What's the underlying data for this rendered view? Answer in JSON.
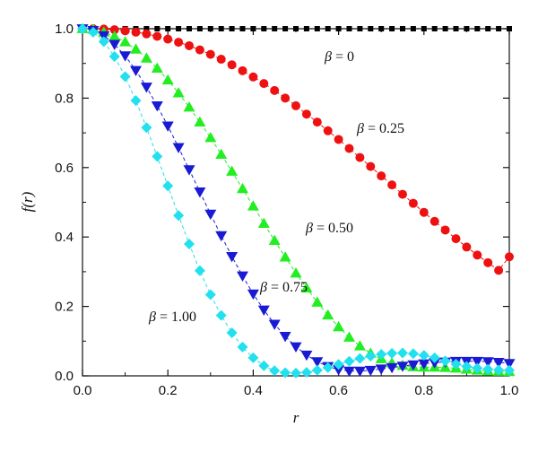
{
  "chart_data": {
    "type": "scatter",
    "xlabel": "r",
    "ylabel": "f(r)",
    "xlim": [
      0,
      1
    ],
    "ylim": [
      0,
      1
    ],
    "xticks": [
      "0.0",
      "0.2",
      "0.4",
      "0.6",
      "0.8",
      "1.0"
    ],
    "yticks": [
      "0.0",
      "0.2",
      "0.4",
      "0.6",
      "0.8",
      "1.0"
    ],
    "grid": false,
    "x": [
      0.0,
      0.025,
      0.05,
      0.075,
      0.1,
      0.125,
      0.15,
      0.175,
      0.2,
      0.225,
      0.25,
      0.275,
      0.3,
      0.325,
      0.35,
      0.375,
      0.4,
      0.425,
      0.45,
      0.475,
      0.5,
      0.525,
      0.55,
      0.575,
      0.6,
      0.625,
      0.65,
      0.675,
      0.7,
      0.725,
      0.75,
      0.775,
      0.8,
      0.825,
      0.85,
      0.875,
      0.9,
      0.925,
      0.95,
      0.975,
      1.0
    ],
    "series": [
      {
        "beta": "0",
        "annotation": "β = 0",
        "color": "#000000",
        "marker": "square",
        "values": [
          1,
          1,
          1,
          1,
          1,
          1,
          1,
          1,
          1,
          1,
          1,
          1,
          1,
          1,
          1,
          1,
          1,
          1,
          1,
          1,
          1,
          1,
          1,
          1,
          1,
          1,
          1,
          1,
          1,
          1,
          1,
          1,
          1,
          1,
          1,
          1,
          1,
          1,
          1,
          1,
          1
        ]
      },
      {
        "beta": "0.25",
        "annotation": "β = 0.25",
        "color": "#ee1111",
        "marker": "circle",
        "values": [
          1.0,
          1.0,
          0.999,
          0.997,
          0.994,
          0.99,
          0.985,
          0.978,
          0.97,
          0.961,
          0.951,
          0.939,
          0.926,
          0.912,
          0.896,
          0.879,
          0.861,
          0.842,
          0.822,
          0.8,
          0.778,
          0.754,
          0.731,
          0.706,
          0.681,
          0.655,
          0.629,
          0.603,
          0.576,
          0.55,
          0.523,
          0.497,
          0.471,
          0.445,
          0.42,
          0.395,
          0.371,
          0.348,
          0.326,
          0.304,
          0.343
        ]
      },
      {
        "beta": "0.50",
        "annotation": "β = 0.50",
        "color": "#22ee22",
        "marker": "triangle-up",
        "values": [
          1.0,
          0.998,
          0.99,
          0.978,
          0.962,
          0.941,
          0.915,
          0.886,
          0.852,
          0.815,
          0.774,
          0.731,
          0.686,
          0.638,
          0.589,
          0.539,
          0.489,
          0.439,
          0.39,
          0.342,
          0.296,
          0.253,
          0.212,
          0.175,
          0.141,
          0.111,
          0.086,
          0.065,
          0.049,
          0.037,
          0.03,
          0.026,
          0.025,
          0.025,
          0.024,
          0.022,
          0.019,
          0.016,
          0.014,
          0.013,
          0.012
        ]
      },
      {
        "beta": "0.75",
        "annotation": "β = 0.75",
        "color": "#1a1ad4",
        "marker": "triangle-down",
        "values": [
          1.0,
          0.995,
          0.98,
          0.955,
          0.922,
          0.88,
          0.832,
          0.778,
          0.72,
          0.658,
          0.594,
          0.53,
          0.466,
          0.404,
          0.344,
          0.288,
          0.236,
          0.19,
          0.149,
          0.114,
          0.084,
          0.06,
          0.041,
          0.027,
          0.018,
          0.014,
          0.014,
          0.016,
          0.02,
          0.024,
          0.028,
          0.032,
          0.035,
          0.038,
          0.04,
          0.042,
          0.042,
          0.042,
          0.041,
          0.039,
          0.036
        ]
      },
      {
        "beta": "1.00",
        "annotation": "β = 1.00",
        "color": "#22e0ee",
        "marker": "diamond",
        "values": [
          1.0,
          0.99,
          0.963,
          0.92,
          0.862,
          0.793,
          0.715,
          0.632,
          0.547,
          0.462,
          0.38,
          0.303,
          0.234,
          0.174,
          0.124,
          0.083,
          0.052,
          0.029,
          0.015,
          0.009,
          0.008,
          0.01,
          0.016,
          0.024,
          0.033,
          0.042,
          0.05,
          0.057,
          0.062,
          0.065,
          0.066,
          0.064,
          0.059,
          0.052,
          0.043,
          0.034,
          0.027,
          0.022,
          0.019,
          0.017,
          0.016
        ]
      }
    ]
  }
}
